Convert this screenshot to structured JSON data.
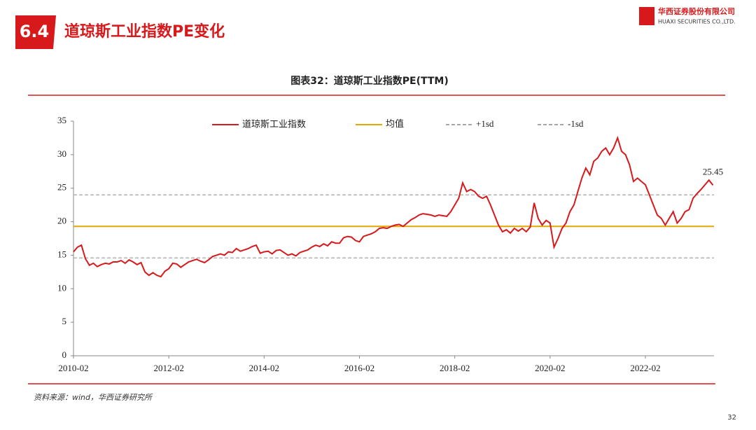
{
  "slide": {
    "section": "6.4",
    "heading": "道琼斯工业指数PE变化",
    "company_cn": "华西证券股份有限公司",
    "company_en": "HUAXI SECURITIES CO.,LTD.",
    "source": "资料来源：wind，华西证券研究所",
    "page": "32"
  },
  "chart_data": {
    "type": "line",
    "title": "图表32：道琼斯工业指数PE(TTM)",
    "x": [
      "2010-02",
      "2010-03",
      "2010-04",
      "2010-05",
      "2010-06",
      "2010-07",
      "2010-08",
      "2010-09",
      "2010-10",
      "2010-11",
      "2010-12",
      "2011-01",
      "2011-02",
      "2011-03",
      "2011-04",
      "2011-05",
      "2011-06",
      "2011-07",
      "2011-08",
      "2011-09",
      "2011-10",
      "2011-11",
      "2011-12",
      "2012-01",
      "2012-02",
      "2012-03",
      "2012-04",
      "2012-05",
      "2012-06",
      "2012-07",
      "2012-08",
      "2012-09",
      "2012-10",
      "2012-11",
      "2012-12",
      "2013-01",
      "2013-02",
      "2013-03",
      "2013-04",
      "2013-05",
      "2013-06",
      "2013-07",
      "2013-08",
      "2013-09",
      "2013-10",
      "2013-11",
      "2013-12",
      "2014-01",
      "2014-02",
      "2014-03",
      "2014-04",
      "2014-05",
      "2014-06",
      "2014-07",
      "2014-08",
      "2014-09",
      "2014-10",
      "2014-11",
      "2014-12",
      "2015-01",
      "2015-02",
      "2015-03",
      "2015-04",
      "2015-05",
      "2015-06",
      "2015-07",
      "2015-08",
      "2015-09",
      "2015-10",
      "2015-11",
      "2015-12",
      "2016-01",
      "2016-02",
      "2016-03",
      "2016-04",
      "2016-05",
      "2016-06",
      "2016-07",
      "2016-08",
      "2016-09",
      "2016-10",
      "2016-11",
      "2016-12",
      "2017-01",
      "2017-02",
      "2017-03",
      "2017-04",
      "2017-05",
      "2017-06",
      "2017-07",
      "2017-08",
      "2017-09",
      "2017-10",
      "2017-11",
      "2017-12",
      "2018-01",
      "2018-02",
      "2018-03",
      "2018-04",
      "2018-05",
      "2018-06",
      "2018-07",
      "2018-08",
      "2018-09",
      "2018-10",
      "2018-11",
      "2018-12",
      "2019-01",
      "2019-02",
      "2019-03",
      "2019-04",
      "2019-05",
      "2019-06",
      "2019-07",
      "2019-08",
      "2019-09",
      "2019-10",
      "2019-11",
      "2019-12",
      "2020-01",
      "2020-02",
      "2020-03",
      "2020-04",
      "2020-05",
      "2020-06",
      "2020-07",
      "2020-08",
      "2020-09",
      "2020-10",
      "2020-11",
      "2020-12",
      "2021-01",
      "2021-02",
      "2021-03",
      "2021-04",
      "2021-05",
      "2021-06",
      "2021-07",
      "2021-08",
      "2021-09",
      "2021-10",
      "2021-11",
      "2021-12",
      "2022-01",
      "2022-02",
      "2022-03",
      "2022-04",
      "2022-05",
      "2022-06",
      "2022-07",
      "2022-08",
      "2022-09",
      "2022-10",
      "2022-11",
      "2022-12",
      "2023-01",
      "2023-02",
      "2023-03",
      "2023-04",
      "2023-05",
      "2023-06",
      "2023-07"
    ],
    "xticks": [
      "2010-02",
      "2012-02",
      "2014-02",
      "2016-02",
      "2018-02",
      "2020-02",
      "2022-02"
    ],
    "series": [
      {
        "name": "道琼斯工业指数",
        "color": "#d7191c",
        "values": [
          15.5,
          16.2,
          16.5,
          14.5,
          13.5,
          13.8,
          13.3,
          13.6,
          13.8,
          13.7,
          14.0,
          14.0,
          14.2,
          13.8,
          14.3,
          14.0,
          13.6,
          13.9,
          12.5,
          12.0,
          12.4,
          12.0,
          11.8,
          12.6,
          13.0,
          13.8,
          13.7,
          13.2,
          13.6,
          14.0,
          14.2,
          14.4,
          14.1,
          13.9,
          14.3,
          14.8,
          15.0,
          15.2,
          15.0,
          15.5,
          15.4,
          16.0,
          15.6,
          15.8,
          16.0,
          16.3,
          16.5,
          15.3,
          15.5,
          15.6,
          15.2,
          15.7,
          15.8,
          15.4,
          15.0,
          15.2,
          14.9,
          15.4,
          15.6,
          15.8,
          16.2,
          16.5,
          16.3,
          16.7,
          16.4,
          17.0,
          16.8,
          16.8,
          17.6,
          17.8,
          17.7,
          17.2,
          17.0,
          17.8,
          18.0,
          18.2,
          18.5,
          19.0,
          19.1,
          19.0,
          19.3,
          19.5,
          19.6,
          19.3,
          19.8,
          20.3,
          20.6,
          21.0,
          21.2,
          21.1,
          21.0,
          20.8,
          21.0,
          20.9,
          20.8,
          21.5,
          22.5,
          23.5,
          25.8,
          24.5,
          24.8,
          24.5,
          23.8,
          23.5,
          23.8,
          22.5,
          21.0,
          19.5,
          18.5,
          18.8,
          18.3,
          19.0,
          18.6,
          19.0,
          18.5,
          19.2,
          22.8,
          20.5,
          19.5,
          20.2,
          19.8,
          16.2,
          17.5,
          19.0,
          19.8,
          21.5,
          22.5,
          24.5,
          26.5,
          28.0,
          27.0,
          29.0,
          29.5,
          30.5,
          31.0,
          30.0,
          31.0,
          32.5,
          30.5,
          30.0,
          28.5,
          26.0,
          26.5,
          26.0,
          25.5,
          24.0,
          22.5,
          21.0,
          20.5,
          19.5,
          20.5,
          21.5,
          19.8,
          20.5,
          21.5,
          21.8,
          23.5,
          24.2,
          24.8,
          25.5,
          26.2,
          25.45
        ]
      }
    ],
    "hlines": [
      {
        "name": "均值",
        "value": 19.3,
        "color": "#e0a800",
        "dashed": false
      },
      {
        "name": "+1sd",
        "value": 24.0,
        "color": "#a6a6a6",
        "dashed": true
      },
      {
        "name": "-1sd",
        "value": 14.6,
        "color": "#a6a6a6",
        "dashed": true
      }
    ],
    "ylim": [
      0,
      35
    ],
    "yticks": [
      0,
      5,
      10,
      15,
      20,
      25,
      30,
      35
    ],
    "grid": false
  }
}
